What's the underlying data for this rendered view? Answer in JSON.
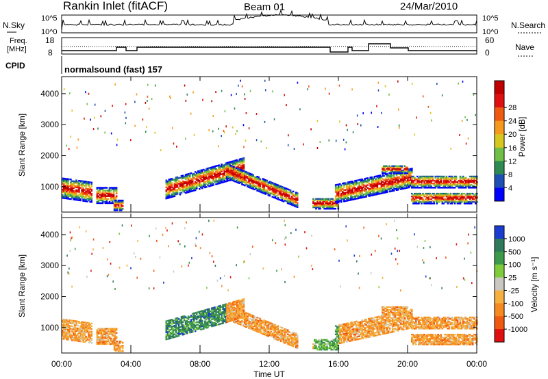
{
  "header": {
    "title": "Rankin Inlet (fitACF)",
    "beam": "Beam 01",
    "date": "24/Mar/2010"
  },
  "top_panels": {
    "nsky_label": "N.Sky",
    "nsky_ticks": [
      "10^5",
      "10^0"
    ],
    "nsearch_label": "N.Search",
    "nsearch_ticks": [
      "10^5",
      "10^0"
    ],
    "freq_label": "Freq.",
    "freq_unit": "[MHz]",
    "freq_ticks": [
      "18",
      "8"
    ],
    "nave_label": "Nave",
    "nave_ticks": [
      "60",
      "0"
    ],
    "cpid_label": "CPID",
    "cpid_value": "normalsound (fast) 157"
  },
  "chart_data": [
    {
      "type": "heatmap",
      "name": "power",
      "ylabel": "Slant Range [km]",
      "yticks": [
        "1000",
        "2000",
        "3000",
        "4000"
      ],
      "ylim": [
        180,
        4550
      ],
      "colorbar_label": "Power [dB]",
      "colorbar_ticks": [
        "4",
        "8",
        "12",
        "16",
        "20",
        "24",
        "28"
      ],
      "colors": [
        "#0000ff",
        "#1e50b4",
        "#2e8a52",
        "#6fbf48",
        "#d6c81e",
        "#f59a1a",
        "#f05a10",
        "#e01010",
        "#c00000"
      ]
    },
    {
      "type": "heatmap",
      "name": "velocity",
      "ylabel": "Slant Range [km]",
      "yticks": [
        "1000",
        "2000",
        "3000",
        "4000"
      ],
      "ylim": [
        180,
        4550
      ],
      "colorbar_label": "Velocity [m s⁻¹]",
      "colorbar_ticks": [
        "1000",
        "500",
        "100",
        "25",
        "-25",
        "-100",
        "-500",
        "-1000"
      ],
      "colors": [
        "#1a3cd0",
        "#2f7a5a",
        "#3d9a4a",
        "#7fcc3a",
        "#c8c8c0",
        "#f5b040",
        "#f58a20",
        "#f05a10",
        "#e01010"
      ]
    }
  ],
  "xaxis": {
    "xlabel": "Time UT",
    "xticks": [
      "00:00",
      "04:00",
      "08:00",
      "12:00",
      "16:00",
      "20:00",
      "00:00"
    ]
  }
}
